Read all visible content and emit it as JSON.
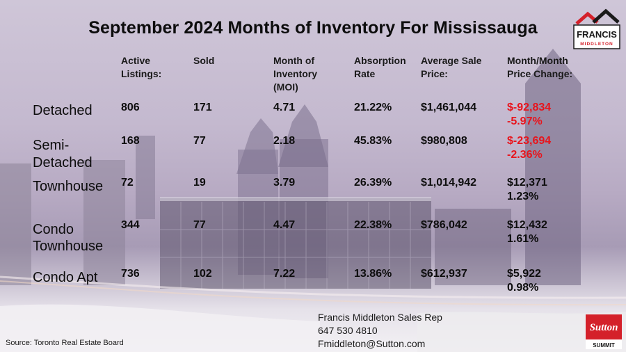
{
  "title": "September 2024 Months of Inventory For Mississauga",
  "headers": {
    "active": "Active Listings:",
    "sold": "Sold",
    "moi": "Month of Inventory (MOI)",
    "absorption": "Absorption Rate",
    "avg_price": "Average Sale Price:",
    "change": "Month/Month Price Change:"
  },
  "rows": [
    {
      "label_line1": "Detached",
      "label_line2": "",
      "active": "806",
      "sold": "171",
      "moi": "4.71",
      "absorption": "21.22%",
      "avg_price": "$1,461,044",
      "change_amount": "$-92,834",
      "change_pct": "-5.97%",
      "negative": true
    },
    {
      "label_line1": "Semi-",
      "label_line2": "Detached",
      "active": "168",
      "sold": "77",
      "moi": "2.18",
      "absorption": "45.83%",
      "avg_price": "$980,808",
      "change_amount": "$-23,694",
      "change_pct": "-2.36%",
      "negative": true
    },
    {
      "label_line1": "Townhouse",
      "label_line2": "",
      "active": "72",
      "sold": "19",
      "moi": "3.79",
      "absorption": "26.39%",
      "avg_price": "$1,014,942",
      "change_amount": "$12,371",
      "change_pct": "1.23%",
      "negative": false
    },
    {
      "label_line1": "Condo",
      "label_line2": "Townhouse",
      "active": "344",
      "sold": "77",
      "moi": "4.47",
      "absorption": "22.38%",
      "avg_price": "$786,042",
      "change_amount": "$12,432",
      "change_pct": "1.61%",
      "negative": false
    },
    {
      "label_line1": "Condo Apt",
      "label_line2": "",
      "active": "736",
      "sold": "102",
      "moi": "7.22",
      "absorption": "13.86%",
      "avg_price": "$612,937",
      "change_amount": "$5,922",
      "change_pct": "0.98%",
      "negative": false
    }
  ],
  "footer": {
    "name": "Francis Middleton Sales Rep",
    "phone": "647 530 4810",
    "email": "Fmiddleton@Sutton.com"
  },
  "source": "Source: Toronto Real Estate Board",
  "logo_francis": {
    "line1": "FRANCIS",
    "line2": "MIDDLETON"
  },
  "logo_sutton": {
    "brand": "Sutton",
    "sub": "SUMMIT"
  },
  "colors": {
    "negative": "#e8141c",
    "sutton_red": "#d4202a"
  }
}
